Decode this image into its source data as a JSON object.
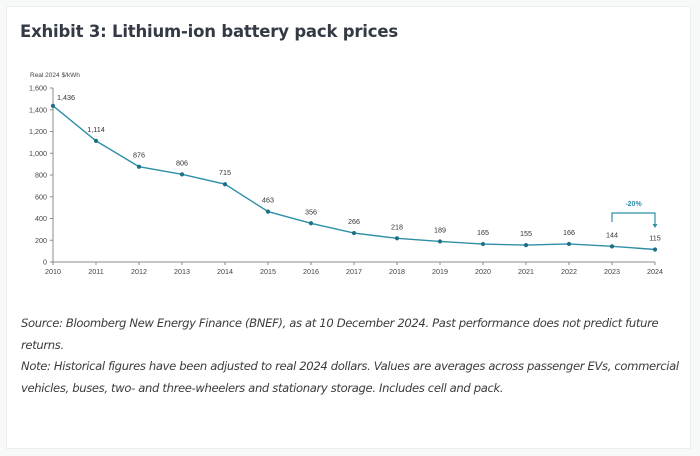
{
  "exhibit": {
    "title": "Exhibit 3: Lithium-ion battery pack prices"
  },
  "chart_data": {
    "type": "line",
    "title": "Exhibit 3: Lithium-ion battery pack prices",
    "ylabel": "Real 2024 $/kWh",
    "xlabel": "",
    "x": [
      "2010",
      "2011",
      "2012",
      "2013",
      "2014",
      "2015",
      "2016",
      "2017",
      "2018",
      "2019",
      "2020",
      "2021",
      "2022",
      "2023",
      "2024"
    ],
    "series": [
      {
        "name": "Battery pack price",
        "values": [
          1436,
          1114,
          876,
          806,
          715,
          463,
          356,
          266,
          218,
          189,
          165,
          155,
          166,
          144,
          115
        ],
        "labels": [
          "1,436",
          "1,114",
          "876",
          "806",
          "715",
          "463",
          "356",
          "266",
          "218",
          "189",
          "165",
          "155",
          "166",
          "144",
          "115"
        ]
      }
    ],
    "ylim": [
      0,
      1600
    ],
    "yticks": [
      0,
      200,
      400,
      600,
      800,
      1000,
      1200,
      1400,
      1600
    ],
    "ytick_labels": [
      "0",
      "200",
      "400",
      "600",
      "800",
      "1,000",
      "1,200",
      "1,400",
      "1,600"
    ],
    "grid": false,
    "legend": "none",
    "annotations": [
      {
        "text": "-20%",
        "from": "2023",
        "to": "2024",
        "type": "bracket-arrow"
      }
    ],
    "colors": {
      "line": "#2e8fa6",
      "marker": "#1d6f86",
      "annotation": "#2e8fa6",
      "axis": "#8c8c8c",
      "text": "#333333"
    }
  },
  "notes": {
    "source": "Source: Bloomberg New Energy Finance (BNEF), as at 10 December 2024. Past performance does not predict future returns.",
    "note": "Note: Historical figures have been adjusted to real 2024 dollars. Values are averages across passenger EVs, commercial vehicles, buses, two- and three-wheelers and stationary storage. Includes cell and pack."
  }
}
